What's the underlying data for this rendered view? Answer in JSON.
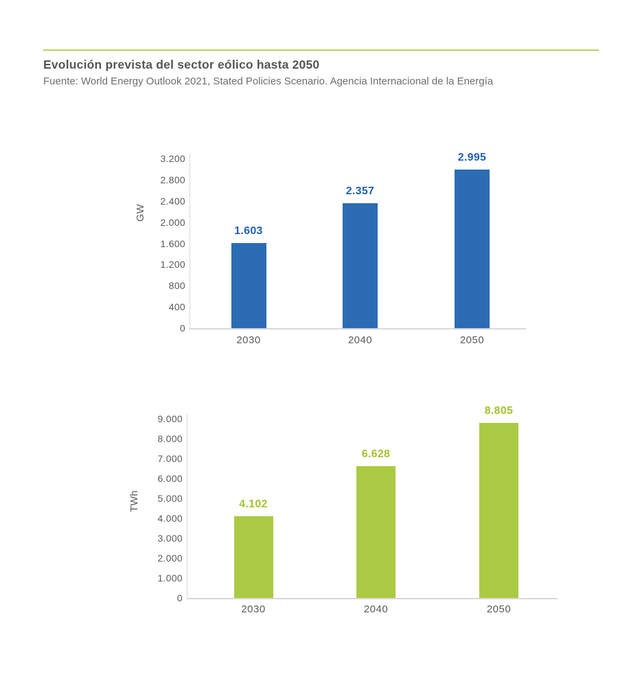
{
  "page": {
    "title": "Evolución prevista del sector eólico hasta 2050",
    "subtitle": "Fuente: World Energy Outlook 2021, Stated Policies Scenario. Agencia Internacional de la Energía"
  },
  "colors": {
    "accent_line": "#b9d15e",
    "title_text": "#565659",
    "subtitle_text": "#6d6e71",
    "axis_line": "#d8d8d8",
    "tick_text": "#58595b"
  },
  "chart_data": [
    {
      "type": "bar",
      "name": "installed-capacity",
      "ylabel": "GW",
      "xlabel": "",
      "categories": [
        "2030",
        "2040",
        "2050"
      ],
      "values": [
        1603,
        2357,
        2995
      ],
      "value_labels": [
        "1.603",
        "2.357",
        "2.995"
      ],
      "ylim": [
        0,
        3200
      ],
      "ytick_step": 400,
      "ytick_labels": [
        "0",
        "400",
        "800",
        "1.200",
        "1.600",
        "2.000",
        "2.400",
        "2.800",
        "3.200"
      ],
      "grid": false,
      "legend": "none",
      "bar_color": "#2b6cb3",
      "value_label_color": "#2161ae"
    },
    {
      "type": "bar",
      "name": "generation",
      "ylabel": "TWh",
      "xlabel": "",
      "categories": [
        "2030",
        "2040",
        "2050"
      ],
      "values": [
        4102,
        6628,
        8805
      ],
      "value_labels": [
        "4.102",
        "6.628",
        "8.805"
      ],
      "ylim": [
        0,
        9000
      ],
      "ytick_step": 1000,
      "ytick_labels": [
        "0",
        "1.000",
        "2.000",
        "3.000",
        "4.000",
        "5.000",
        "6.000",
        "7.000",
        "8.000",
        "9.000"
      ],
      "grid": false,
      "legend": "none",
      "bar_color": "#abca43",
      "value_label_color": "#a2c430"
    }
  ]
}
